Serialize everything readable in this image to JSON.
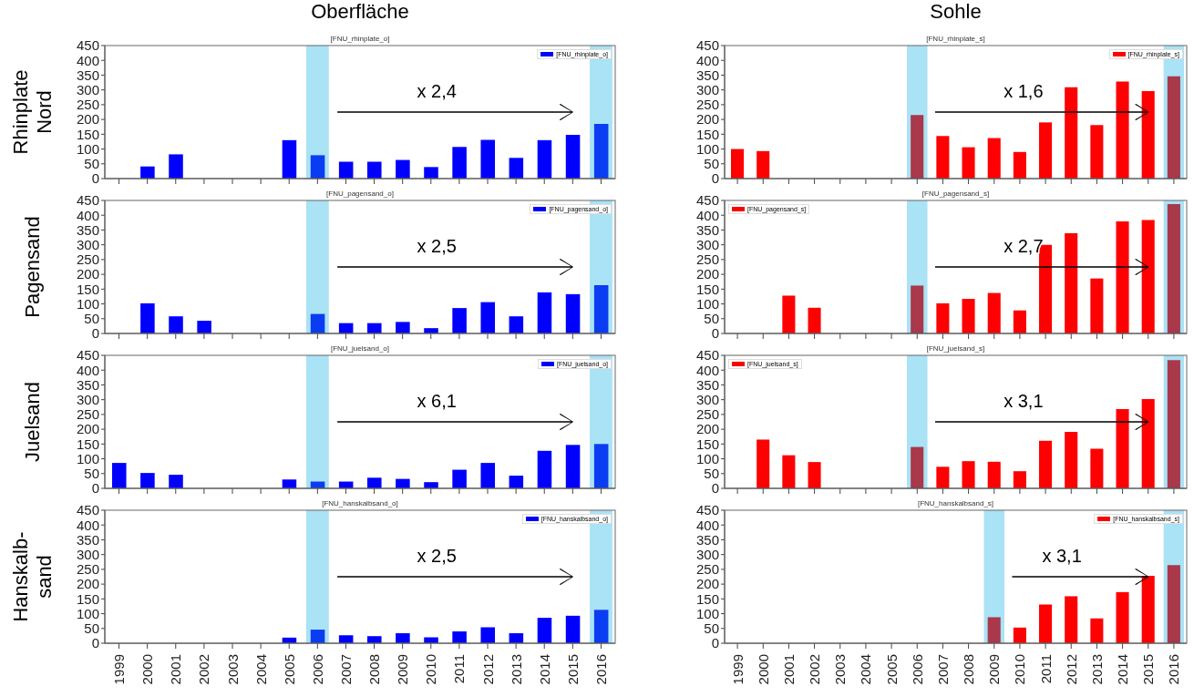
{
  "chart_data": [
    {
      "type": "bar",
      "title": "[FNU_rhinplate_o]",
      "ylabel": "Rhinplate\nNord",
      "categories": [
        "1999",
        "2000",
        "2001",
        "2002",
        "2003",
        "2004",
        "2005",
        "2006",
        "2007",
        "2008",
        "2009",
        "2010",
        "2011",
        "2012",
        "2013",
        "2014",
        "2015",
        "2016"
      ],
      "series": [
        {
          "name": "[FNU_rhinplate_o]",
          "color": "#0000ff",
          "values": [
            null,
            41,
            82,
            null,
            null,
            null,
            130,
            79,
            57,
            57,
            63,
            39,
            107,
            131,
            70,
            130,
            148,
            185
          ],
          "colors": [
            "#0000ff",
            "#0000ff",
            "#0000ff",
            "#0000ff",
            "#0000ff",
            "#0000ff",
            "#0000ff",
            "#0a3cf2",
            "#0000ff",
            "#0000ff",
            "#0000ff",
            "#0000ff",
            "#0000ff",
            "#0000ff",
            "#0000ff",
            "#0000ff",
            "#0000ff",
            "#0a3cf2"
          ]
        }
      ],
      "ylim": [
        0,
        450
      ],
      "yticks": [
        0,
        50,
        100,
        150,
        200,
        250,
        300,
        350,
        400,
        450
      ],
      "tick_labels": "y",
      "legend": "top right",
      "bands": [
        {
          "axis": "x",
          "from": "2006",
          "to": "2006",
          "color": "#aae2f6"
        },
        {
          "axis": "x",
          "from": "2016",
          "to": "2016",
          "color": "#aae2f6"
        }
      ],
      "annotations": [
        "Oberfläche",
        "x 2,4"
      ]
    },
    {
      "type": "bar",
      "title": "[FNU_rhinplate_s]",
      "categories": [
        "1999",
        "2000",
        "2001",
        "2002",
        "2003",
        "2004",
        "2005",
        "2006",
        "2007",
        "2008",
        "2009",
        "2010",
        "2011",
        "2012",
        "2013",
        "2014",
        "2015",
        "2016"
      ],
      "series": [
        {
          "name": "[FNU_rhinplate_s]",
          "color": "#ff0000",
          "values": [
            100,
            93,
            null,
            null,
            null,
            null,
            null,
            215,
            144,
            106,
            137,
            90,
            190,
            309,
            181,
            328,
            296,
            346
          ],
          "colors": [
            "#ff0000",
            "#ff0000",
            "#ff0000",
            "#ff0000",
            "#ff0000",
            "#ff0000",
            "#ff0000",
            "#a8384a",
            "#ff0000",
            "#ff0000",
            "#ff0000",
            "#ff0000",
            "#ff0000",
            "#ff0000",
            "#ff0000",
            "#ff0000",
            "#ff0000",
            "#a8384a"
          ]
        }
      ],
      "ylim": [
        0,
        450
      ],
      "yticks": [
        0,
        50,
        100,
        150,
        200,
        250,
        300,
        350,
        400,
        450
      ],
      "tick_labels": "y",
      "legend": "top right",
      "bands": [
        {
          "axis": "x",
          "from": "2006",
          "to": "2006",
          "color": "#aae2f6"
        },
        {
          "axis": "x",
          "from": "2016",
          "to": "2016",
          "color": "#aae2f6"
        }
      ],
      "annotations": [
        "Sohle",
        "x 1,6"
      ]
    },
    {
      "type": "bar",
      "title": "[FNU_pagensand_o]",
      "ylabel": "Pagensand",
      "categories": [
        "1999",
        "2000",
        "2001",
        "2002",
        "2003",
        "2004",
        "2005",
        "2006",
        "2007",
        "2008",
        "2009",
        "2010",
        "2011",
        "2012",
        "2013",
        "2014",
        "2015",
        "2016"
      ],
      "series": [
        {
          "name": "[FNU_pagensand_o]",
          "color": "#0000ff",
          "values": [
            null,
            102,
            58,
            43,
            null,
            null,
            null,
            66,
            35,
            35,
            39,
            18,
            86,
            106,
            58,
            139,
            133,
            163
          ],
          "colors": [
            "#0000ff",
            "#0000ff",
            "#0000ff",
            "#0000ff",
            "#0000ff",
            "#0000ff",
            "#0000ff",
            "#0a3cf2",
            "#0000ff",
            "#0000ff",
            "#0000ff",
            "#0000ff",
            "#0000ff",
            "#0000ff",
            "#0000ff",
            "#0000ff",
            "#0000ff",
            "#0a3cf2"
          ]
        }
      ],
      "ylim": [
        0,
        450
      ],
      "yticks": [
        0,
        50,
        100,
        150,
        200,
        250,
        300,
        350,
        400,
        450
      ],
      "tick_labels": "y",
      "legend": "top right",
      "bands": [
        {
          "axis": "x",
          "from": "2006",
          "to": "2006",
          "color": "#aae2f6"
        },
        {
          "axis": "x",
          "from": "2016",
          "to": "2016",
          "color": "#aae2f6"
        }
      ],
      "annotations": [
        "x 2,5"
      ]
    },
    {
      "type": "bar",
      "title": "[FNU_pagensand_s]",
      "categories": [
        "1999",
        "2000",
        "2001",
        "2002",
        "2003",
        "2004",
        "2005",
        "2006",
        "2007",
        "2008",
        "2009",
        "2010",
        "2011",
        "2012",
        "2013",
        "2014",
        "2015",
        "2016"
      ],
      "series": [
        {
          "name": "[FNU_pagensand_s]",
          "color": "#ff0000",
          "values": [
            null,
            null,
            128,
            87,
            null,
            null,
            null,
            162,
            102,
            117,
            137,
            78,
            300,
            339,
            186,
            379,
            384,
            438
          ],
          "colors": [
            "#ff0000",
            "#ff0000",
            "#ff0000",
            "#ff0000",
            "#ff0000",
            "#ff0000",
            "#ff0000",
            "#a8384a",
            "#ff0000",
            "#ff0000",
            "#ff0000",
            "#ff0000",
            "#ff0000",
            "#ff0000",
            "#ff0000",
            "#ff0000",
            "#ff0000",
            "#a8384a"
          ]
        }
      ],
      "ylim": [
        0,
        450
      ],
      "yticks": [
        0,
        50,
        100,
        150,
        200,
        250,
        300,
        350,
        400,
        450
      ],
      "tick_labels": "y",
      "legend": "top left",
      "bands": [
        {
          "axis": "x",
          "from": "2006",
          "to": "2006",
          "color": "#aae2f6"
        },
        {
          "axis": "x",
          "from": "2016",
          "to": "2016",
          "color": "#aae2f6"
        }
      ],
      "annotations": [
        "x 2,7"
      ]
    },
    {
      "type": "bar",
      "title": "[FNU_juelsand_o]",
      "ylabel": "Juelsand",
      "categories": [
        "1999",
        "2000",
        "2001",
        "2002",
        "2003",
        "2004",
        "2005",
        "2006",
        "2007",
        "2008",
        "2009",
        "2010",
        "2011",
        "2012",
        "2013",
        "2014",
        "2015",
        "2016"
      ],
      "series": [
        {
          "name": "[FNU_juelsand_o]",
          "color": "#0000ff",
          "values": [
            86,
            52,
            46,
            null,
            null,
            null,
            30,
            23,
            23,
            36,
            32,
            21,
            63,
            86,
            43,
            127,
            147,
            150
          ],
          "colors": [
            "#0000ff",
            "#0000ff",
            "#0000ff",
            "#0000ff",
            "#0000ff",
            "#0000ff",
            "#0000ff",
            "#0a3cf2",
            "#0000ff",
            "#0000ff",
            "#0000ff",
            "#0000ff",
            "#0000ff",
            "#0000ff",
            "#0000ff",
            "#0000ff",
            "#0000ff",
            "#0a3cf2"
          ]
        }
      ],
      "ylim": [
        0,
        450
      ],
      "yticks": [
        0,
        50,
        100,
        150,
        200,
        250,
        300,
        350,
        400,
        450
      ],
      "tick_labels": "y",
      "legend": "top right",
      "bands": [
        {
          "axis": "x",
          "from": "2006",
          "to": "2006",
          "color": "#aae2f6"
        },
        {
          "axis": "x",
          "from": "2016",
          "to": "2016",
          "color": "#aae2f6"
        }
      ],
      "annotations": [
        "x 6,1"
      ]
    },
    {
      "type": "bar",
      "title": "[FNU_juelsand_s]",
      "categories": [
        "1999",
        "2000",
        "2001",
        "2002",
        "2003",
        "2004",
        "2005",
        "2006",
        "2007",
        "2008",
        "2009",
        "2010",
        "2011",
        "2012",
        "2013",
        "2014",
        "2015",
        "2016"
      ],
      "series": [
        {
          "name": "[FNU_juelsand_s]",
          "color": "#ff0000",
          "values": [
            null,
            165,
            112,
            89,
            null,
            null,
            null,
            140,
            73,
            92,
            90,
            58,
            161,
            191,
            134,
            268,
            302,
            434
          ],
          "colors": [
            "#ff0000",
            "#ff0000",
            "#ff0000",
            "#ff0000",
            "#ff0000",
            "#ff0000",
            "#ff0000",
            "#a8384a",
            "#ff0000",
            "#ff0000",
            "#ff0000",
            "#ff0000",
            "#ff0000",
            "#ff0000",
            "#ff0000",
            "#ff0000",
            "#ff0000",
            "#a8384a"
          ]
        }
      ],
      "ylim": [
        0,
        450
      ],
      "yticks": [
        0,
        50,
        100,
        150,
        200,
        250,
        300,
        350,
        400,
        450
      ],
      "tick_labels": "y",
      "legend": "top left",
      "bands": [
        {
          "axis": "x",
          "from": "2006",
          "to": "2006",
          "color": "#aae2f6"
        },
        {
          "axis": "x",
          "from": "2016",
          "to": "2016",
          "color": "#aae2f6"
        }
      ],
      "annotations": [
        "x 3,1"
      ]
    },
    {
      "type": "bar",
      "title": "[FNU_hanskalbsand_o]",
      "ylabel": "Hanskalb-\nsand",
      "categories": [
        "1999",
        "2000",
        "2001",
        "2002",
        "2003",
        "2004",
        "2005",
        "2006",
        "2007",
        "2008",
        "2009",
        "2010",
        "2011",
        "2012",
        "2013",
        "2014",
        "2015",
        "2016"
      ],
      "series": [
        {
          "name": "[FNU_hanskalbsand_o]",
          "color": "#0000ff",
          "values": [
            null,
            null,
            null,
            null,
            null,
            null,
            19,
            46,
            27,
            24,
            34,
            20,
            40,
            54,
            34,
            86,
            93,
            113
          ],
          "colors": [
            "#0000ff",
            "#0000ff",
            "#0000ff",
            "#0000ff",
            "#0000ff",
            "#0000ff",
            "#0000ff",
            "#0a3cf2",
            "#0000ff",
            "#0000ff",
            "#0000ff",
            "#0000ff",
            "#0000ff",
            "#0000ff",
            "#0000ff",
            "#0000ff",
            "#0000ff",
            "#0a3cf2"
          ]
        }
      ],
      "ylim": [
        0,
        450
      ],
      "yticks": [
        0,
        50,
        100,
        150,
        200,
        250,
        300,
        350,
        400,
        450
      ],
      "legend": "top right",
      "bands": [
        {
          "axis": "x",
          "from": "2006",
          "to": "2006",
          "color": "#aae2f6"
        },
        {
          "axis": "x",
          "from": "2016",
          "to": "2016",
          "color": "#aae2f6"
        }
      ],
      "annotations": [
        "x 2,5"
      ]
    },
    {
      "type": "bar",
      "title": "[FNU_hanskalbsand_s]",
      "categories": [
        "1999",
        "2000",
        "2001",
        "2002",
        "2003",
        "2004",
        "2005",
        "2006",
        "2007",
        "2008",
        "2009",
        "2010",
        "2011",
        "2012",
        "2013",
        "2014",
        "2015",
        "2016"
      ],
      "series": [
        {
          "name": "[FNU_hanskalbsand_s]",
          "color": "#ff0000",
          "values": [
            null,
            null,
            null,
            null,
            null,
            null,
            null,
            null,
            null,
            null,
            88,
            53,
            131,
            159,
            84,
            173,
            228,
            264
          ],
          "colors": [
            "#ff0000",
            "#ff0000",
            "#ff0000",
            "#ff0000",
            "#ff0000",
            "#ff0000",
            "#ff0000",
            "#ff0000",
            "#ff0000",
            "#ff0000",
            "#a8384a",
            "#ff0000",
            "#ff0000",
            "#ff0000",
            "#ff0000",
            "#ff0000",
            "#ff0000",
            "#a8384a"
          ]
        }
      ],
      "ylim": [
        0,
        450
      ],
      "yticks": [
        0,
        50,
        100,
        150,
        200,
        250,
        300,
        350,
        400,
        450
      ],
      "legend": "top right",
      "bands": [
        {
          "axis": "x",
          "from": "2009",
          "to": "2009",
          "color": "#aae2f6"
        },
        {
          "axis": "x",
          "from": "2016",
          "to": "2016",
          "color": "#aae2f6"
        }
      ],
      "annotations": [
        "x 3,1"
      ]
    }
  ]
}
